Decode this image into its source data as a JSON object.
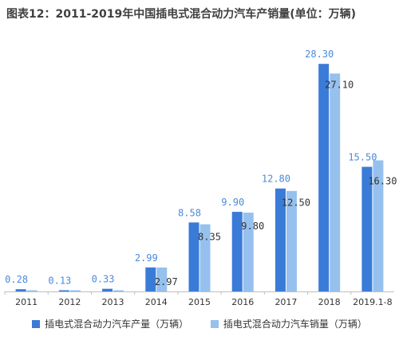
{
  "title": "图表12：2011-2019年中国插电式混合动力汽车产销量(单位：万辆)",
  "colors": {
    "production": "#3a7bd8",
    "sales": "#96c0ee",
    "label_color": "#4a8ad8",
    "axis": "#bfbfbf"
  },
  "chart_data": {
    "type": "bar",
    "categories": [
      "2011",
      "2012",
      "2013",
      "2014",
      "2015",
      "2016",
      "2017",
      "2018",
      "2019.1-8"
    ],
    "series": [
      {
        "name": "插电式混合动力汽车产量（万辆）",
        "values": [
          0.28,
          0.13,
          0.33,
          2.99,
          8.58,
          9.9,
          12.8,
          28.3,
          15.5
        ],
        "labels": [
          "0.28",
          "0.13",
          "0.33",
          "2.99",
          "8.58",
          "9.90",
          "12.80",
          "28.30",
          "15.50"
        ]
      },
      {
        "name": "插电式混合动力汽车销量（万辆）",
        "values": [
          0.02,
          0.02,
          0.02,
          2.97,
          8.35,
          9.8,
          12.5,
          27.1,
          16.3
        ],
        "labels": [
          "",
          "",
          "",
          "2.97",
          "8.35",
          "9.80",
          "12.50",
          "27.10",
          "16.30"
        ]
      }
    ],
    "ylim": [
      0,
      30
    ],
    "legend": "bottom"
  }
}
